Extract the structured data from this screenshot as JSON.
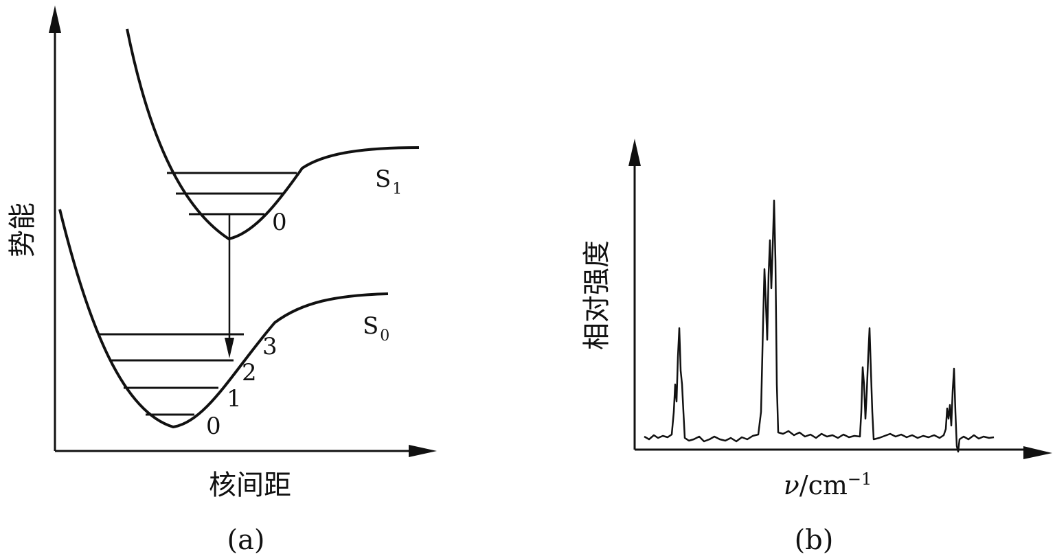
{
  "panel_a": {
    "caption": "(a)",
    "y_axis_label": "势能",
    "x_axis_label": "核间距",
    "curves": {
      "upper": {
        "label_main": "S",
        "label_sub": "1"
      },
      "lower": {
        "label_main": "S",
        "label_sub": "0"
      }
    },
    "upper_levels": [
      "0"
    ],
    "lower_levels": [
      "0",
      "1",
      "2",
      "3"
    ]
  },
  "panel_b": {
    "caption": "(b)",
    "y_axis_label": "相对强度",
    "x_axis_label_symbol": "ν",
    "x_axis_label_unit": "/cm",
    "x_axis_label_exp": "−1"
  },
  "colors": {
    "ink": "#111111",
    "background": "#ffffff"
  }
}
